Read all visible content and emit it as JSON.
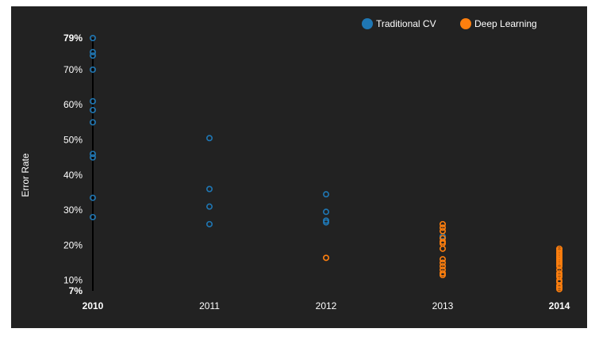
{
  "chart_data": {
    "type": "scatter",
    "title": "",
    "xlabel": "",
    "ylabel": "Error Rate",
    "x_categories": [
      "2010",
      "2011",
      "2012",
      "2013",
      "2014"
    ],
    "bold_x_ticks": [
      "2010",
      "2014"
    ],
    "y_ticks": [
      {
        "value": 79,
        "label": "79%",
        "bold": true
      },
      {
        "value": 70,
        "label": "70%",
        "bold": false
      },
      {
        "value": 60,
        "label": "60%",
        "bold": false
      },
      {
        "value": 50,
        "label": "50%",
        "bold": false
      },
      {
        "value": 40,
        "label": "40%",
        "bold": false
      },
      {
        "value": 30,
        "label": "30%",
        "bold": false
      },
      {
        "value": 20,
        "label": "20%",
        "bold": false
      },
      {
        "value": 10,
        "label": "10%",
        "bold": false
      },
      {
        "value": 7,
        "label": "7%",
        "bold": true
      }
    ],
    "ylim": [
      7,
      79
    ],
    "grid": false,
    "legend_position": "top-right",
    "background_color": "#222222",
    "text_color": "#ffffff",
    "series": [
      {
        "name": "Traditional CV",
        "color": "#1f77b4",
        "points": [
          {
            "x": "2010",
            "y": 79
          },
          {
            "x": "2010",
            "y": 75
          },
          {
            "x": "2010",
            "y": 74
          },
          {
            "x": "2010",
            "y": 70
          },
          {
            "x": "2010",
            "y": 61
          },
          {
            "x": "2010",
            "y": 58.5
          },
          {
            "x": "2010",
            "y": 55
          },
          {
            "x": "2010",
            "y": 46
          },
          {
            "x": "2010",
            "y": 45
          },
          {
            "x": "2010",
            "y": 33.5
          },
          {
            "x": "2010",
            "y": 28
          },
          {
            "x": "2011",
            "y": 50.5
          },
          {
            "x": "2011",
            "y": 36
          },
          {
            "x": "2011",
            "y": 31
          },
          {
            "x": "2011",
            "y": 26
          },
          {
            "x": "2012",
            "y": 34.5
          },
          {
            "x": "2012",
            "y": 29.5
          },
          {
            "x": "2012",
            "y": 27
          },
          {
            "x": "2012",
            "y": 26.5
          },
          {
            "x": "2013",
            "y": 22.5
          }
        ]
      },
      {
        "name": "Deep Learning",
        "color": "#ff7f0e",
        "points": [
          {
            "x": "2012",
            "y": 16.4
          },
          {
            "x": "2013",
            "y": 26
          },
          {
            "x": "2013",
            "y": 25
          },
          {
            "x": "2013",
            "y": 24
          },
          {
            "x": "2013",
            "y": 22
          },
          {
            "x": "2013",
            "y": 21
          },
          {
            "x": "2013",
            "y": 20.5
          },
          {
            "x": "2013",
            "y": 19
          },
          {
            "x": "2013",
            "y": 16
          },
          {
            "x": "2013",
            "y": 15
          },
          {
            "x": "2013",
            "y": 14
          },
          {
            "x": "2013",
            "y": 13
          },
          {
            "x": "2013",
            "y": 12
          },
          {
            "x": "2013",
            "y": 11.5
          },
          {
            "x": "2014",
            "y": 19
          },
          {
            "x": "2014",
            "y": 18.5
          },
          {
            "x": "2014",
            "y": 18
          },
          {
            "x": "2014",
            "y": 17.5
          },
          {
            "x": "2014",
            "y": 17
          },
          {
            "x": "2014",
            "y": 16.5
          },
          {
            "x": "2014",
            "y": 16
          },
          {
            "x": "2014",
            "y": 15.5
          },
          {
            "x": "2014",
            "y": 15
          },
          {
            "x": "2014",
            "y": 14.5
          },
          {
            "x": "2014",
            "y": 14
          },
          {
            "x": "2014",
            "y": 13
          },
          {
            "x": "2014",
            "y": 12
          },
          {
            "x": "2014",
            "y": 11.5
          },
          {
            "x": "2014",
            "y": 11
          },
          {
            "x": "2014",
            "y": 10
          },
          {
            "x": "2014",
            "y": 9.5
          },
          {
            "x": "2014",
            "y": 8.5
          },
          {
            "x": "2014",
            "y": 8
          },
          {
            "x": "2014",
            "y": 7.5
          }
        ]
      }
    ]
  }
}
